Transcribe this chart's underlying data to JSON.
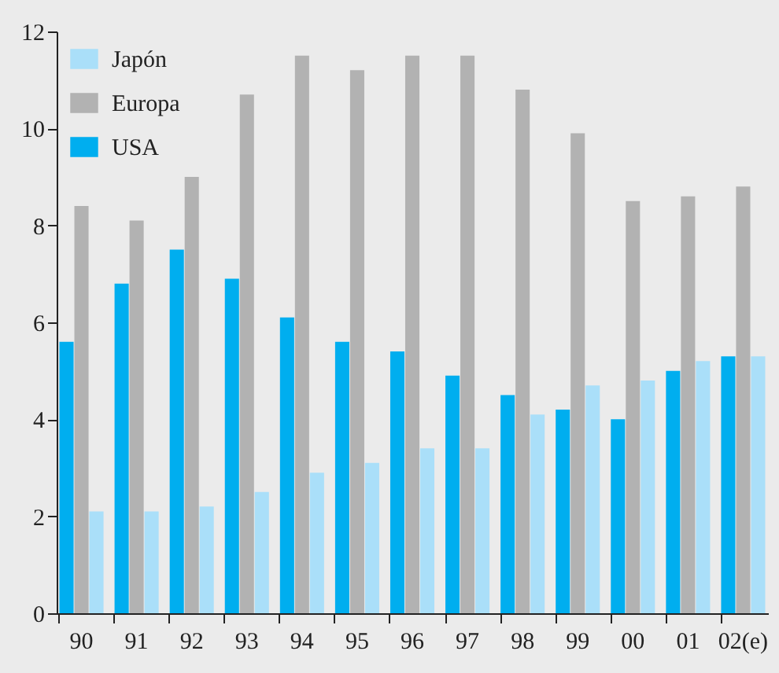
{
  "chart_data": {
    "type": "bar",
    "categories": [
      "90",
      "91",
      "92",
      "93",
      "94",
      "95",
      "96",
      "97",
      "98",
      "99",
      "00",
      "01",
      "02(e)"
    ],
    "series": [
      {
        "name": "USA",
        "color": "#00aeef",
        "values": [
          5.6,
          6.8,
          7.5,
          6.9,
          6.1,
          5.6,
          5.4,
          4.9,
          4.5,
          4.2,
          4.0,
          5.0,
          5.3
        ]
      },
      {
        "name": "Europa",
        "color": "#b2b2b2",
        "values": [
          8.4,
          8.1,
          9.0,
          10.7,
          11.5,
          11.2,
          11.5,
          11.5,
          10.8,
          9.9,
          8.5,
          8.6,
          8.8
        ]
      },
      {
        "name": "Japón",
        "color": "#aadff9",
        "values": [
          2.1,
          2.1,
          2.2,
          2.5,
          2.9,
          3.1,
          3.4,
          3.4,
          4.1,
          4.7,
          4.8,
          5.2,
          5.3
        ]
      }
    ],
    "ylim": [
      0,
      12
    ],
    "yticks": [
      0,
      2,
      4,
      6,
      8,
      10,
      12
    ],
    "grid": false,
    "legend": "top left"
  }
}
